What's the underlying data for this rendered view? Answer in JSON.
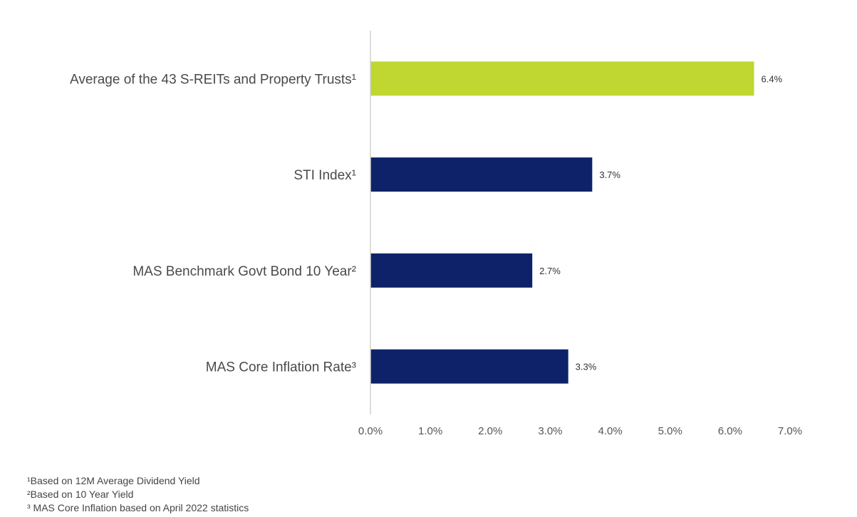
{
  "chart_data": {
    "type": "bar",
    "orientation": "horizontal",
    "categories": [
      "Average of the 43 S-REITs and Property Trusts¹",
      "STI Index¹",
      "MAS Benchmark Govt Bond 10 Year²",
      "MAS Core Inflation Rate³"
    ],
    "values": [
      6.4,
      3.7,
      2.7,
      3.3
    ],
    "value_labels": [
      "6.4%",
      "3.7%",
      "2.7%",
      "3.3%"
    ],
    "bar_colors": [
      "#bfd730",
      "#0d2269",
      "#0d2269",
      "#0d2269"
    ],
    "x_ticks": [
      0,
      1,
      2,
      3,
      4,
      5,
      6,
      7
    ],
    "x_tick_labels": [
      "0.0%",
      "1.0%",
      "2.0%",
      "3.0%",
      "4.0%",
      "5.0%",
      "6.0%",
      "7.0%"
    ],
    "xlim": [
      0,
      7
    ],
    "grid": false,
    "legend": "none",
    "title": "",
    "xlabel": "",
    "ylabel": ""
  },
  "footnotes": [
    "¹Based on 12M Average Dividend Yield",
    "²Based on 10 Year Yield",
    "³ MAS Core Inflation based on April 2022 statistics"
  ],
  "colors": {
    "highlight": "#bfd730",
    "primary": "#0d2269",
    "axis": "#d0d0d0"
  }
}
